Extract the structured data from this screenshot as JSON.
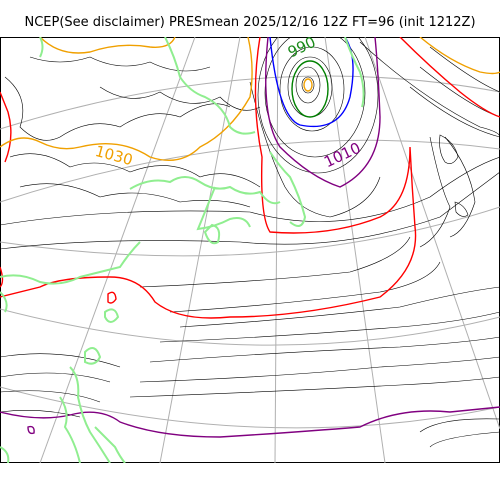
{
  "map": {
    "title": "NCEP(See disclaimer) PRESmean 2025/12/16 12Z FT=96 (init 1212Z)",
    "contour_labels": [
      {
        "text": "990",
        "color": "#1a8a1a"
      },
      {
        "text": "1010",
        "color": "#800080"
      },
      {
        "text": "1030",
        "color": "#f0a000"
      }
    ],
    "colors": {
      "coastline": "#90ee90",
      "isobar_default": "#000000",
      "isobar_990": "#008000",
      "isobar_1000": "#0000ff",
      "isobar_1010": "#800080",
      "isobar_1020": "#ff0000",
      "isobar_1030": "#ffa500",
      "gridline": "#b0b0b0"
    }
  }
}
